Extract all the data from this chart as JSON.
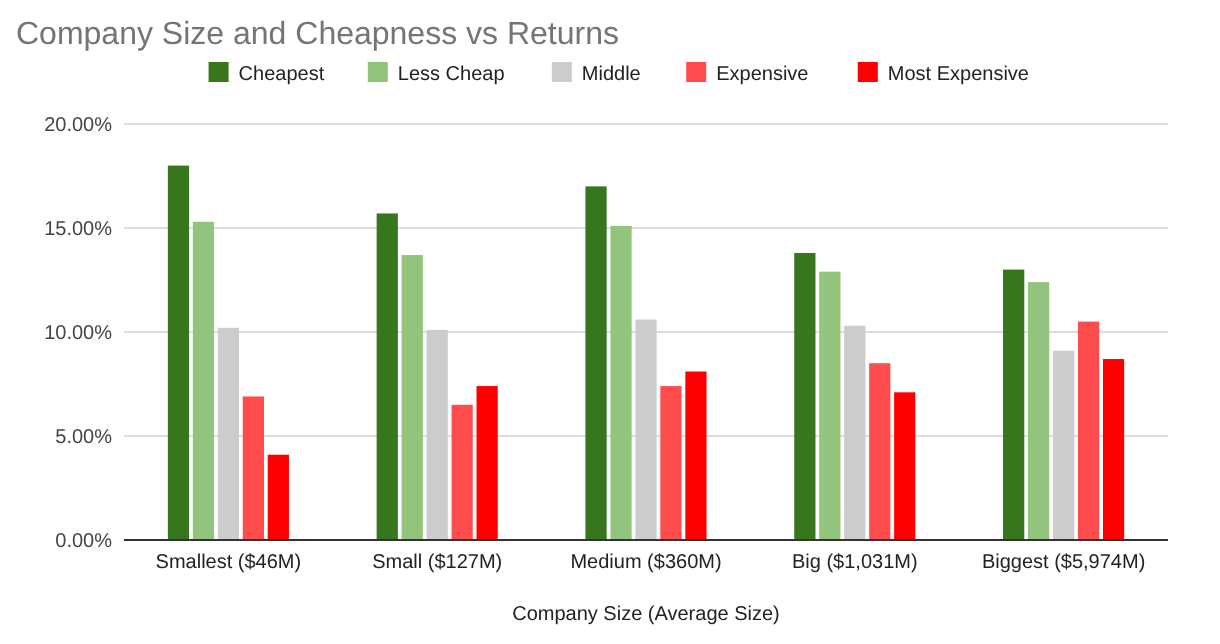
{
  "chart_data": {
    "type": "bar",
    "title": "Company Size and Cheapness vs Returns",
    "xlabel": "Company Size (Average Size)",
    "categories": [
      "Smallest ($46M)",
      "Small ($127M)",
      "Medium ($360M)",
      "Big ($1,031M)",
      "Biggest ($5,974M)"
    ],
    "series": [
      {
        "name": "Cheapest",
        "color": "#38761d",
        "values": [
          18.0,
          15.7,
          17.0,
          13.8,
          13.0
        ]
      },
      {
        "name": "Less Cheap",
        "color": "#93c47d",
        "values": [
          15.3,
          13.7,
          15.1,
          12.9,
          12.4
        ]
      },
      {
        "name": "Middle",
        "color": "#cccccc",
        "values": [
          10.2,
          10.1,
          10.6,
          10.3,
          9.1
        ]
      },
      {
        "name": "Expensive",
        "color": "#ff4d4d",
        "values": [
          6.9,
          6.5,
          7.4,
          8.5,
          10.5
        ]
      },
      {
        "name": "Most Expensive",
        "color": "#ff0000",
        "values": [
          4.1,
          7.4,
          8.1,
          7.1,
          8.7
        ]
      }
    ],
    "ylim": [
      0,
      20
    ],
    "yticks": [
      {
        "value": 0,
        "label": "0.00%"
      },
      {
        "value": 5,
        "label": "5.00%"
      },
      {
        "value": 10,
        "label": "10.00%"
      },
      {
        "value": 15,
        "label": "15.00%"
      },
      {
        "value": 20,
        "label": "20.00%"
      }
    ],
    "grid": "y",
    "legend": "top"
  }
}
